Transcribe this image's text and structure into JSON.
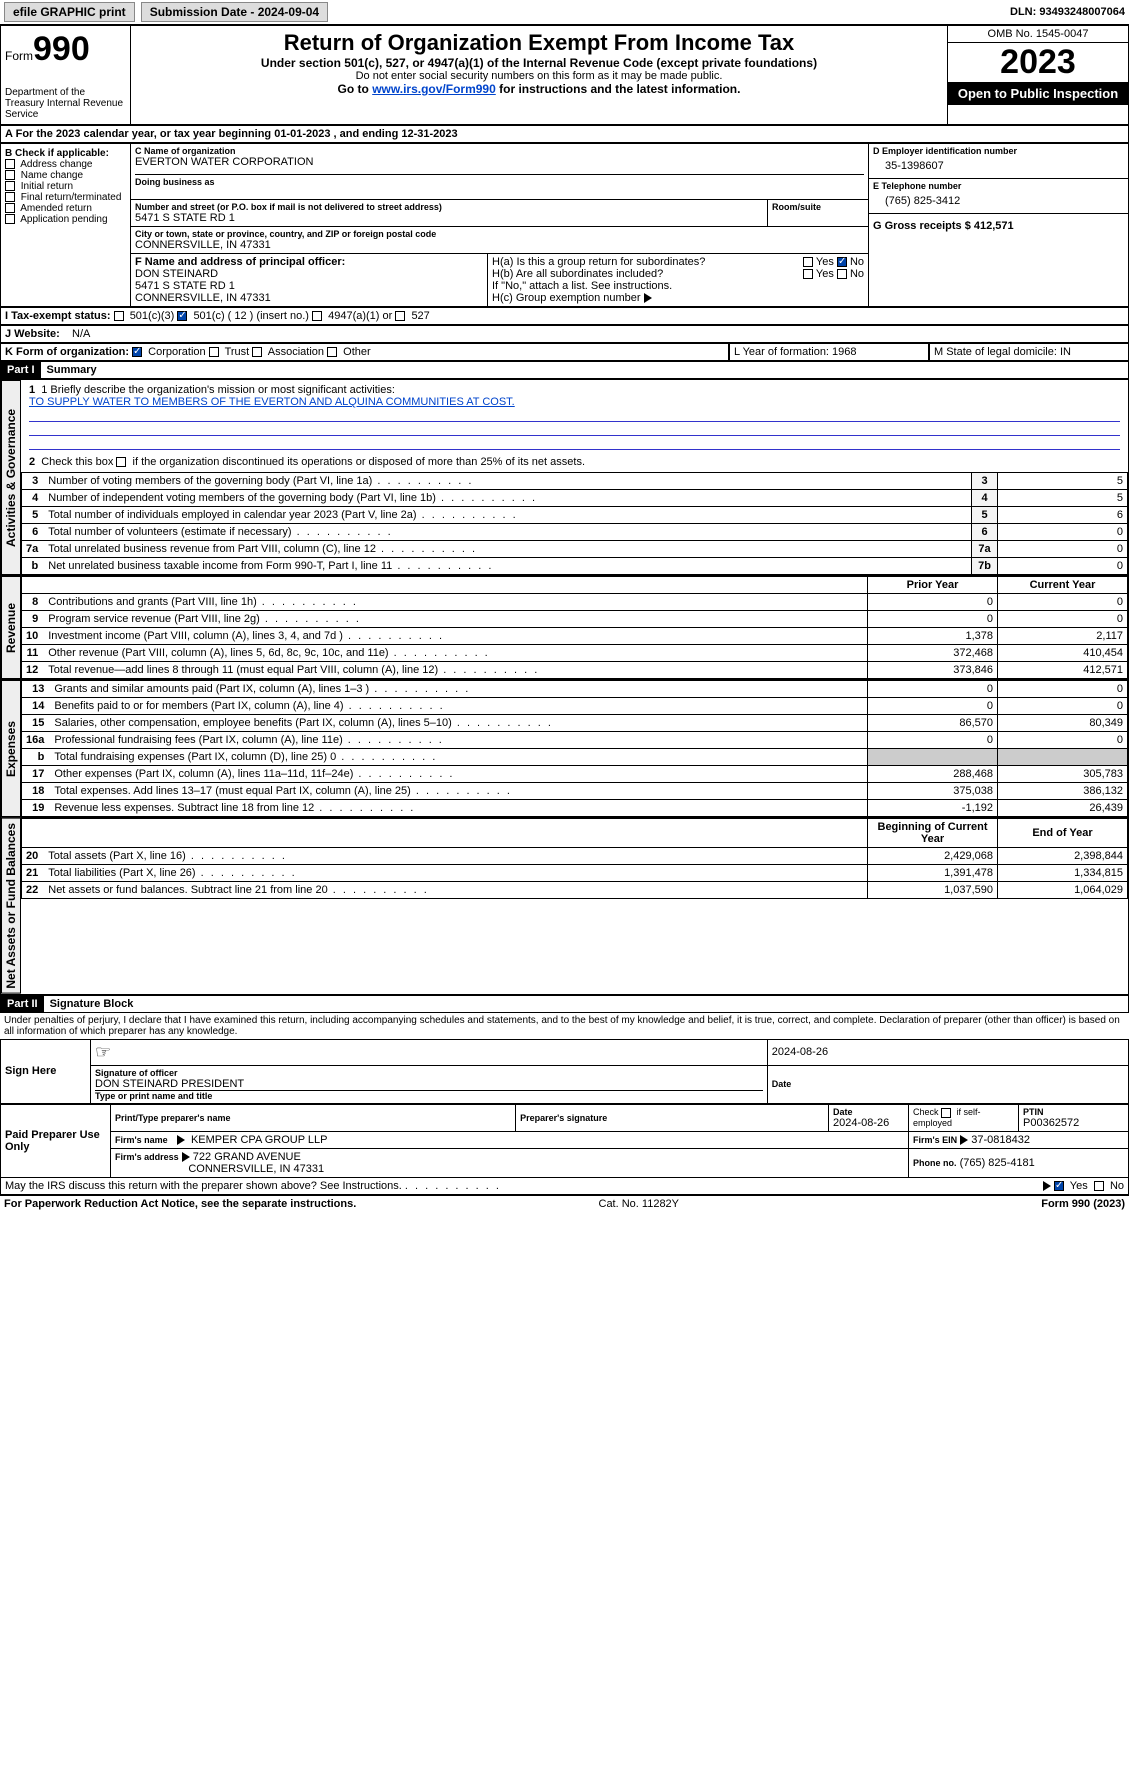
{
  "topbar": {
    "efile": "efile GRAPHIC print",
    "submission": "Submission Date - 2024-09-04",
    "dln": "DLN: 93493248007064"
  },
  "header": {
    "form_prefix": "Form",
    "form_number": "990",
    "dept": "Department of the Treasury Internal Revenue Service",
    "title": "Return of Organization Exempt From Income Tax",
    "sub1": "Under section 501(c), 527, or 4947(a)(1) of the Internal Revenue Code (except private foundations)",
    "sub2": "Do not enter social security numbers on this form as it may be made public.",
    "sub3_pre": "Go to ",
    "sub3_link": "www.irs.gov/Form990",
    "sub3_post": " for instructions and the latest information.",
    "omb": "OMB No. 1545-0047",
    "year": "2023",
    "open": "Open to Public Inspection"
  },
  "tax_year_line": "For the 2023 calendar year, or tax year beginning 01-01-2023   , and ending 12-31-2023",
  "box_b": {
    "label": "B Check if applicable:",
    "items": [
      "Address change",
      "Name change",
      "Initial return",
      "Final return/terminated",
      "Amended return",
      "Application pending"
    ]
  },
  "box_c": {
    "name_label": "C Name of organization",
    "name": "EVERTON WATER CORPORATION",
    "dba_label": "Doing business as",
    "street_label": "Number and street (or P.O. box if mail is not delivered to street address)",
    "street": "5471 S STATE RD 1",
    "room_label": "Room/suite",
    "city_label": "City or town, state or province, country, and ZIP or foreign postal code",
    "city": "CONNERSVILLE, IN  47331"
  },
  "box_d": {
    "label": "D Employer identification number",
    "val": "35-1398607"
  },
  "box_e": {
    "label": "E Telephone number",
    "val": "(765) 825-3412"
  },
  "box_g": {
    "label": "G Gross receipts $ 412,571"
  },
  "box_f": {
    "label": "F  Name and address of principal officer:",
    "name": "DON STEINARD",
    "street": "5471 S STATE RD 1",
    "city": "CONNERSVILLE, IN  47331"
  },
  "box_h": {
    "ha": "H(a)  Is this a group return for subordinates?",
    "hb": "H(b)  Are all subordinates included?",
    "hb_note": "If \"No,\" attach a list. See instructions.",
    "hc": "H(c)  Group exemption number",
    "yes": "Yes",
    "no": "No"
  },
  "box_i": {
    "label": "I   Tax-exempt status:",
    "o1": "501(c)(3)",
    "o2": "501(c) ( 12 ) (insert no.)",
    "o3": "4947(a)(1) or",
    "o4": "527"
  },
  "box_j": {
    "label": "J   Website:",
    "val": "N/A"
  },
  "box_k": {
    "label": "K Form of organization:",
    "o1": "Corporation",
    "o2": "Trust",
    "o3": "Association",
    "o4": "Other"
  },
  "box_l": {
    "label": "L Year of formation: 1968"
  },
  "box_m": {
    "label": "M State of legal domicile: IN"
  },
  "part1": {
    "header": "Part I",
    "title": "Summary",
    "q1_label": "1  Briefly describe the organization's mission or most significant activities:",
    "q1_val": "TO SUPPLY WATER TO MEMBERS OF THE EVERTON AND ALQUINA COMMUNITIES AT COST.",
    "q2": "2   Check this box      if the organization discontinued its operations or disposed of more than 25% of its net assets.",
    "vlabels": {
      "gov": "Activities & Governance",
      "rev": "Revenue",
      "exp": "Expenses",
      "net": "Net Assets or Fund Balances"
    }
  },
  "summary_gov": [
    {
      "n": "3",
      "desc": "Number of voting members of the governing body (Part VI, line 1a)",
      "ln": "3",
      "v": "5"
    },
    {
      "n": "4",
      "desc": "Number of independent voting members of the governing body (Part VI, line 1b)",
      "ln": "4",
      "v": "5"
    },
    {
      "n": "5",
      "desc": "Total number of individuals employed in calendar year 2023 (Part V, line 2a)",
      "ln": "5",
      "v": "6"
    },
    {
      "n": "6",
      "desc": "Total number of volunteers (estimate if necessary)",
      "ln": "6",
      "v": "0"
    },
    {
      "n": "7a",
      "desc": "Total unrelated business revenue from Part VIII, column (C), line 12",
      "ln": "7a",
      "v": "0"
    },
    {
      "n": "b",
      "desc": "Net unrelated business taxable income from Form 990-T, Part I, line 11",
      "ln": "7b",
      "v": "0"
    }
  ],
  "col_headers": {
    "prior": "Prior Year",
    "current": "Current Year",
    "beg": "Beginning of Current Year",
    "end": "End of Year"
  },
  "summary_rev": [
    {
      "n": "8",
      "desc": "Contributions and grants (Part VIII, line 1h)",
      "p": "0",
      "c": "0"
    },
    {
      "n": "9",
      "desc": "Program service revenue (Part VIII, line 2g)",
      "p": "0",
      "c": "0"
    },
    {
      "n": "10",
      "desc": "Investment income (Part VIII, column (A), lines 3, 4, and 7d )",
      "p": "1,378",
      "c": "2,117"
    },
    {
      "n": "11",
      "desc": "Other revenue (Part VIII, column (A), lines 5, 6d, 8c, 9c, 10c, and 11e)",
      "p": "372,468",
      "c": "410,454"
    },
    {
      "n": "12",
      "desc": "Total revenue—add lines 8 through 11 (must equal Part VIII, column (A), line 12)",
      "p": "373,846",
      "c": "412,571"
    }
  ],
  "summary_exp": [
    {
      "n": "13",
      "desc": "Grants and similar amounts paid (Part IX, column (A), lines 1–3 )",
      "p": "0",
      "c": "0"
    },
    {
      "n": "14",
      "desc": "Benefits paid to or for members (Part IX, column (A), line 4)",
      "p": "0",
      "c": "0"
    },
    {
      "n": "15",
      "desc": "Salaries, other compensation, employee benefits (Part IX, column (A), lines 5–10)",
      "p": "86,570",
      "c": "80,349"
    },
    {
      "n": "16a",
      "desc": "Professional fundraising fees (Part IX, column (A), line 11e)",
      "p": "0",
      "c": "0"
    },
    {
      "n": "b",
      "desc": "Total fundraising expenses (Part IX, column (D), line 25) 0",
      "p": "",
      "c": "",
      "gray": true
    },
    {
      "n": "17",
      "desc": "Other expenses (Part IX, column (A), lines 11a–11d, 11f–24e)",
      "p": "288,468",
      "c": "305,783"
    },
    {
      "n": "18",
      "desc": "Total expenses. Add lines 13–17 (must equal Part IX, column (A), line 25)",
      "p": "375,038",
      "c": "386,132"
    },
    {
      "n": "19",
      "desc": "Revenue less expenses. Subtract line 18 from line 12",
      "p": "-1,192",
      "c": "26,439"
    }
  ],
  "summary_net": [
    {
      "n": "20",
      "desc": "Total assets (Part X, line 16)",
      "p": "2,429,068",
      "c": "2,398,844"
    },
    {
      "n": "21",
      "desc": "Total liabilities (Part X, line 26)",
      "p": "1,391,478",
      "c": "1,334,815"
    },
    {
      "n": "22",
      "desc": "Net assets or fund balances. Subtract line 21 from line 20",
      "p": "1,037,590",
      "c": "1,064,029"
    }
  ],
  "part2": {
    "header": "Part II",
    "title": "Signature Block",
    "penalty": "Under penalties of perjury, I declare that I have examined this return, including accompanying schedules and statements, and to the best of my knowledge and belief, it is true, correct, and complete. Declaration of preparer (other than officer) is based on all information of which preparer has any knowledge."
  },
  "sign": {
    "left": "Sign Here",
    "date": "2024-08-26",
    "sig_label": "Signature of officer",
    "officer": "DON STEINARD  PRESIDENT",
    "type_label": "Type or print name and title",
    "date_label": "Date"
  },
  "preparer": {
    "left": "Paid Preparer Use Only",
    "name_label": "Print/Type preparer's name",
    "sig_label": "Preparer's signature",
    "date_label": "Date",
    "date": "2024-08-26",
    "check_label": "Check         if self-employed",
    "ptin_label": "PTIN",
    "ptin": "P00362572",
    "firm_name_label": "Firm's name",
    "firm_name": "KEMPER CPA GROUP LLP",
    "firm_ein_label": "Firm's EIN",
    "firm_ein": "37-0818432",
    "firm_addr_label": "Firm's address",
    "firm_addr1": "722 GRAND AVENUE",
    "firm_addr2": "CONNERSVILLE, IN  47331",
    "phone_label": "Phone no.",
    "phone": "(765) 825-4181"
  },
  "discuss": "May the IRS discuss this return with the preparer shown above? See Instructions.",
  "footer": {
    "left": "For Paperwork Reduction Act Notice, see the separate instructions.",
    "mid": "Cat. No. 11282Y",
    "right_pre": "Form ",
    "right_form": "990",
    "right_post": " (2023)"
  }
}
